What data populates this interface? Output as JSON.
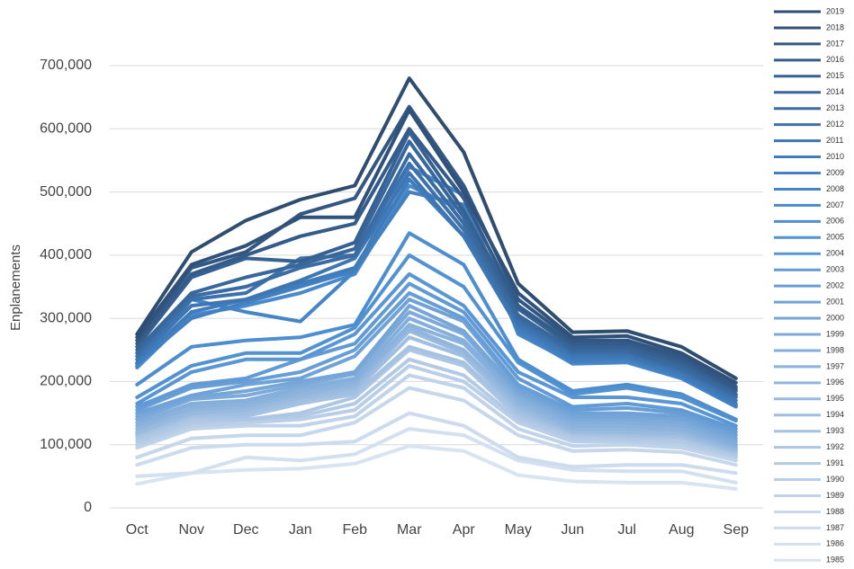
{
  "chart_data": {
    "type": "line",
    "y_axis_label": "Enplanements",
    "categories": [
      "Oct",
      "Nov",
      "Dec",
      "Jan",
      "Feb",
      "Mar",
      "Apr",
      "May",
      "Jun",
      "Jul",
      "Aug",
      "Sep"
    ],
    "ylim": [
      0,
      700000
    ],
    "yticks": [
      0,
      {
        "value": 100000,
        "label": "100,000"
      },
      {
        "value": 200000,
        "label": "200,000"
      },
      {
        "value": 300000,
        "label": "300,000"
      },
      {
        "value": 400000,
        "label": "400,000"
      },
      {
        "value": 500000,
        "label": "500,000"
      },
      {
        "value": 600000,
        "label": "600,000"
      },
      {
        "value": 700000,
        "label": "700,000"
      }
    ],
    "grid": true,
    "legend": "right",
    "series": [
      {
        "name": "2019",
        "color": "#2f4d6e",
        "values": [
          275000,
          405000,
          455000,
          488000,
          510000,
          680000,
          563000,
          355000,
          278000,
          280000,
          255000,
          205000
        ]
      },
      {
        "name": "2018",
        "color": "#30527a",
        "values": [
          270000,
          385000,
          415000,
          460000,
          460000,
          630000,
          500000,
          340000,
          270000,
          272000,
          245000,
          198000
        ]
      },
      {
        "name": "2017",
        "color": "#325783",
        "values": [
          265000,
          380000,
          405000,
          465000,
          490000,
          635000,
          510000,
          330000,
          265000,
          265000,
          240000,
          192000
        ]
      },
      {
        "name": "2016",
        "color": "#345c8b",
        "values": [
          260000,
          370000,
          400000,
          430000,
          450000,
          600000,
          490000,
          320000,
          260000,
          260000,
          235000,
          188000
        ]
      },
      {
        "name": "2015",
        "color": "#366193",
        "values": [
          255000,
          365000,
          395000,
          390000,
          420000,
          595000,
          470000,
          315000,
          255000,
          255000,
          230000,
          185000
        ]
      },
      {
        "name": "2014",
        "color": "#38679b",
        "values": [
          250000,
          340000,
          365000,
          385000,
          410000,
          580000,
          460000,
          305000,
          250000,
          250000,
          225000,
          180000
        ]
      },
      {
        "name": "2013",
        "color": "#3a6ca3",
        "values": [
          245000,
          335000,
          350000,
          380000,
          400000,
          560000,
          450000,
          300000,
          248000,
          248000,
          220000,
          178000
        ]
      },
      {
        "name": "2012",
        "color": "#3c71ab",
        "values": [
          240000,
          330000,
          340000,
          395000,
          400000,
          545000,
          440000,
          295000,
          245000,
          245000,
          218000,
          175000
        ]
      },
      {
        "name": "2011",
        "color": "#3e76b3",
        "values": [
          235000,
          320000,
          330000,
          360000,
          395000,
          530000,
          430000,
          290000,
          240000,
          240000,
          215000,
          170000
        ]
      },
      {
        "name": "2010",
        "color": "#407bba",
        "values": [
          230000,
          310000,
          330000,
          355000,
          380000,
          520000,
          430000,
          285000,
          235000,
          238000,
          210000,
          165000
        ]
      },
      {
        "name": "2009",
        "color": "#4280c1",
        "values": [
          228000,
          300000,
          325000,
          350000,
          375000,
          500000,
          480000,
          280000,
          232000,
          235000,
          208000,
          162000
        ]
      },
      {
        "name": "2008",
        "color": "#4585c7",
        "values": [
          225000,
          330000,
          310000,
          295000,
          375000,
          540000,
          495000,
          275000,
          230000,
          232000,
          205000,
          160000
        ]
      },
      {
        "name": "2007",
        "color": "#488acc",
        "values": [
          222000,
          305000,
          320000,
          340000,
          370000,
          510000,
          470000,
          278000,
          228000,
          230000,
          205000,
          160000
        ]
      },
      {
        "name": "2006",
        "color": "#4d8ecf",
        "values": [
          195000,
          255000,
          265000,
          270000,
          290000,
          435000,
          385000,
          235000,
          185000,
          195000,
          180000,
          140000
        ]
      },
      {
        "name": "2005",
        "color": "#5392d1",
        "values": [
          175000,
          225000,
          245000,
          245000,
          285000,
          400000,
          350000,
          230000,
          180000,
          190000,
          175000,
          138000
        ]
      },
      {
        "name": "2004",
        "color": "#5a96d3",
        "values": [
          165000,
          215000,
          235000,
          235000,
          275000,
          370000,
          320000,
          215000,
          175000,
          175000,
          165000,
          130000
        ]
      },
      {
        "name": "2003",
        "color": "#619ad5",
        "values": [
          160000,
          195000,
          205000,
          235000,
          260000,
          355000,
          310000,
          205000,
          160000,
          165000,
          155000,
          125000
        ]
      },
      {
        "name": "2002",
        "color": "#689ed6",
        "values": [
          155000,
          190000,
          200000,
          215000,
          250000,
          340000,
          300000,
          195000,
          155000,
          158000,
          150000,
          120000
        ]
      },
      {
        "name": "2001",
        "color": "#6fa2d7",
        "values": [
          150000,
          178000,
          195000,
          205000,
          240000,
          330000,
          295000,
          190000,
          150000,
          150000,
          145000,
          115000
        ]
      },
      {
        "name": "2000",
        "color": "#76a6d8",
        "values": [
          145000,
          175000,
          185000,
          200000,
          215000,
          320000,
          280000,
          185000,
          145000,
          145000,
          140000,
          110000
        ]
      },
      {
        "name": "1999",
        "color": "#7daad9",
        "values": [
          140000,
          172000,
          178000,
          195000,
          212000,
          310000,
          275000,
          180000,
          140000,
          140000,
          135000,
          105000
        ]
      },
      {
        "name": "1998",
        "color": "#84aedb",
        "values": [
          135000,
          165000,
          170000,
          190000,
          205000,
          300000,
          265000,
          175000,
          135000,
          135000,
          130000,
          100000
        ]
      },
      {
        "name": "1997",
        "color": "#8ab2dc",
        "values": [
          130000,
          160000,
          165000,
          185000,
          200000,
          290000,
          260000,
          170000,
          130000,
          130000,
          125000,
          98000
        ]
      },
      {
        "name": "1996",
        "color": "#91b6dd",
        "values": [
          125000,
          155000,
          160000,
          180000,
          195000,
          285000,
          250000,
          165000,
          125000,
          125000,
          122000,
          95000
        ]
      },
      {
        "name": "1995",
        "color": "#98badf",
        "values": [
          120000,
          150000,
          155000,
          175000,
          190000,
          280000,
          245000,
          160000,
          122000,
          120000,
          118000,
          92000
        ]
      },
      {
        "name": "1994",
        "color": "#9fbee0",
        "values": [
          118000,
          148000,
          150000,
          170000,
          185000,
          270000,
          240000,
          155000,
          120000,
          118000,
          115000,
          90000
        ]
      },
      {
        "name": "1993",
        "color": "#a5c2e2",
        "values": [
          115000,
          145000,
          145000,
          165000,
          180000,
          255000,
          230000,
          150000,
          118000,
          115000,
          112000,
          88000
        ]
      },
      {
        "name": "1992",
        "color": "#acc6e3",
        "values": [
          110000,
          140000,
          140000,
          150000,
          175000,
          250000,
          225000,
          145000,
          115000,
          112000,
          110000,
          85000
        ]
      },
      {
        "name": "1991",
        "color": "#b3cae5",
        "values": [
          105000,
          135000,
          140000,
          145000,
          165000,
          235000,
          210000,
          140000,
          110000,
          108000,
          105000,
          82000
        ]
      },
      {
        "name": "1990",
        "color": "#b9cee7",
        "values": [
          100000,
          130000,
          135000,
          140000,
          155000,
          225000,
          200000,
          135000,
          105000,
          105000,
          100000,
          80000
        ]
      },
      {
        "name": "1989",
        "color": "#c0d3e9",
        "values": [
          95000,
          125000,
          130000,
          130000,
          145000,
          210000,
          190000,
          125000,
          98000,
          100000,
          95000,
          75000
        ]
      },
      {
        "name": "1988",
        "color": "#c6d7eb",
        "values": [
          80000,
          110000,
          115000,
          115000,
          135000,
          190000,
          170000,
          115000,
          90000,
          92000,
          88000,
          68000
        ]
      },
      {
        "name": "1987",
        "color": "#ccdbed",
        "values": [
          68000,
          95000,
          100000,
          100000,
          105000,
          150000,
          130000,
          80000,
          65000,
          68000,
          68000,
          55000
        ]
      },
      {
        "name": "1986",
        "color": "#d3e0ef",
        "values": [
          50000,
          55000,
          80000,
          75000,
          85000,
          125000,
          115000,
          75000,
          60000,
          58000,
          58000,
          40000
        ]
      },
      {
        "name": "1985",
        "color": "#d9e4f1",
        "values": [
          38000,
          55000,
          60000,
          62000,
          70000,
          98000,
          90000,
          52000,
          42000,
          40000,
          40000,
          30000
        ]
      }
    ]
  }
}
